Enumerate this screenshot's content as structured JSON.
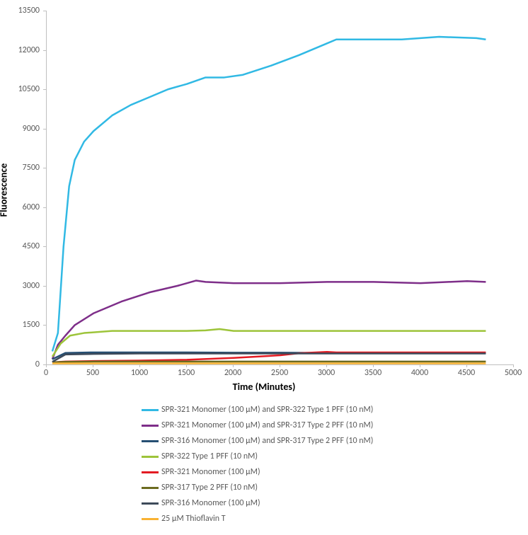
{
  "chart": {
    "type": "line",
    "x_label": "Time (Minutes)",
    "y_label": "Fluorescence",
    "label_fontsize": 14,
    "label_fontweight": "bold",
    "tick_fontsize": 12,
    "background_color": "#ffffff",
    "axis_color": "#bfbfbf",
    "tick_label_color": "#595959",
    "xlim": [
      0,
      5000
    ],
    "ylim": [
      0,
      13500
    ],
    "x_ticks": [
      0,
      500,
      1000,
      1500,
      2000,
      2500,
      3000,
      3500,
      4000,
      4500,
      5000
    ],
    "y_ticks": [
      0,
      1500,
      3000,
      4500,
      6000,
      7500,
      9000,
      10500,
      12000,
      13500
    ],
    "line_width": 2.5,
    "series": [
      {
        "name": "SPR-321 Monomer (100 µM) and SPR-322 Type 1 PFF (10 nM)",
        "color": "#31b9e4",
        "x": [
          60,
          120,
          180,
          240,
          300,
          400,
          500,
          700,
          900,
          1100,
          1300,
          1500,
          1700,
          1900,
          2100,
          2400,
          2700,
          3000,
          3100,
          3400,
          3800,
          4200,
          4600,
          4700
        ],
        "y": [
          500,
          1200,
          4500,
          6800,
          7800,
          8500,
          8900,
          9500,
          9900,
          10200,
          10500,
          10700,
          10950,
          10950,
          11050,
          11400,
          11800,
          12250,
          12400,
          12400,
          12400,
          12500,
          12450,
          12400
        ]
      },
      {
        "name": "SPR-321 Monomer (100 µM) and SPR-317 Type 2 PFF (10 nM)",
        "color": "#7e2e89",
        "x": [
          60,
          120,
          200,
          300,
          500,
          800,
          1100,
          1400,
          1600,
          1700,
          2000,
          2500,
          3000,
          3500,
          4000,
          4500,
          4700
        ],
        "y": [
          200,
          750,
          1100,
          1500,
          1950,
          2400,
          2750,
          3000,
          3200,
          3150,
          3100,
          3100,
          3150,
          3150,
          3100,
          3180,
          3150
        ]
      },
      {
        "name": "SPR-316 Monomer (100 µM) and SPR-317 Type 2 PFF (10 nM)",
        "color": "#264f73",
        "x": [
          60,
          200,
          500,
          1000,
          1500,
          2000,
          2500,
          3000,
          3500,
          4000,
          4500,
          4700
        ],
        "y": [
          200,
          440,
          460,
          460,
          460,
          450,
          450,
          440,
          440,
          440,
          440,
          440
        ]
      },
      {
        "name": "SPR-322 Type 1 PFF (10 nM)",
        "color": "#9dc43a",
        "x": [
          60,
          150,
          250,
          400,
          700,
          1000,
          1500,
          1700,
          1850,
          2000,
          2500,
          3000,
          3500,
          4000,
          4500,
          4700
        ],
        "y": [
          300,
          800,
          1100,
          1200,
          1280,
          1280,
          1280,
          1300,
          1350,
          1280,
          1280,
          1280,
          1280,
          1280,
          1280,
          1280
        ]
      },
      {
        "name": "SPR-321 Monomer (100 µM)",
        "color": "#e31b23",
        "x": [
          60,
          200,
          500,
          1000,
          1500,
          2000,
          2500,
          2700,
          3000,
          3100,
          3500,
          4000,
          4500,
          4700
        ],
        "y": [
          80,
          110,
          130,
          150,
          180,
          250,
          350,
          430,
          480,
          460,
          460,
          460,
          460,
          460
        ]
      },
      {
        "name": "SPR-317 Type 2 PFF (10 nM)",
        "color": "#6c6b20",
        "x": [
          60,
          200,
          500,
          1000,
          1500,
          2000,
          2500,
          3000,
          3500,
          4000,
          4500,
          4700
        ],
        "y": [
          80,
          100,
          110,
          110,
          110,
          110,
          110,
          110,
          110,
          110,
          110,
          110
        ]
      },
      {
        "name": "SPR-316 Monomer (100 µM)",
        "color": "#3d4a5a",
        "x": [
          60,
          200,
          500,
          1000,
          1500,
          2000,
          2500,
          3000,
          3500,
          4000,
          4500,
          4700
        ],
        "y": [
          100,
          380,
          400,
          420,
          420,
          420,
          420,
          420,
          420,
          420,
          420,
          420
        ]
      },
      {
        "name": "25 µM Thioflavin T",
        "color": "#f9b233",
        "x": [
          60,
          200,
          500,
          1000,
          1500,
          2000,
          2500,
          3000,
          3500,
          4000,
          4500,
          4700
        ],
        "y": [
          40,
          40,
          40,
          40,
          40,
          40,
          40,
          40,
          40,
          40,
          40,
          40
        ]
      }
    ]
  }
}
